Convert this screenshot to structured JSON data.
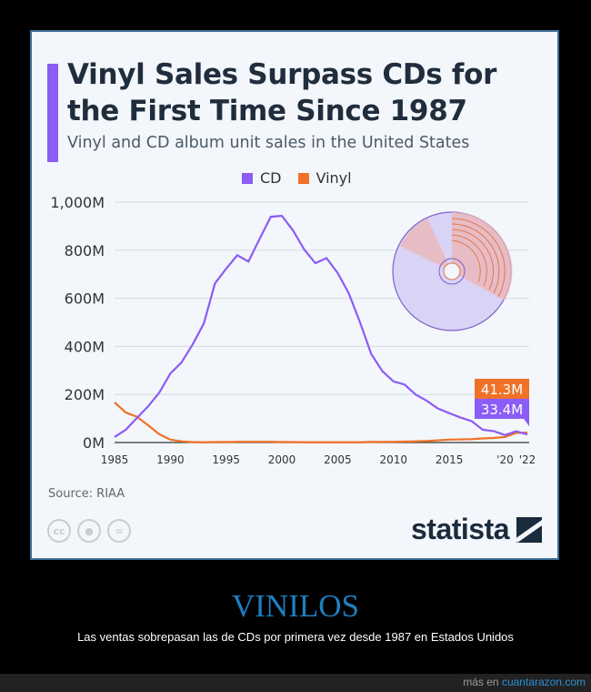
{
  "header": {
    "title": "Vinyl Sales Surpass CDs for the First Time Since 1987",
    "subtitle": "Vinyl and CD album unit sales in the United States"
  },
  "colors": {
    "cd": "#8b5cf6",
    "vinyl": "#f07228",
    "accent": "#8b5cf6"
  },
  "chart_data": {
    "type": "line",
    "title": "Vinyl Sales Surpass CDs for the First Time Since 1987",
    "xlabel": "",
    "ylabel": "",
    "ylim": [
      0,
      1000
    ],
    "xlim": [
      1985,
      2022
    ],
    "grid": true,
    "legend_position": "top",
    "y_ticks": [
      "0M",
      "200M",
      "400M",
      "600M",
      "800M",
      "1,000M"
    ],
    "y_tick_values": [
      0,
      200,
      400,
      600,
      800,
      1000
    ],
    "x_ticks": [
      "1985",
      "1990",
      "1995",
      "2000",
      "2005",
      "2010",
      "2015",
      "'20",
      "'22"
    ],
    "x_tick_values": [
      1985,
      1990,
      1995,
      2000,
      2005,
      2010,
      2015,
      2020,
      2022
    ],
    "x": [
      1985,
      1986,
      1987,
      1988,
      1989,
      1990,
      1991,
      1992,
      1993,
      1994,
      1995,
      1996,
      1997,
      1998,
      1999,
      2000,
      2001,
      2002,
      2003,
      2004,
      2005,
      2006,
      2007,
      2008,
      2009,
      2010,
      2011,
      2012,
      2013,
      2014,
      2015,
      2016,
      2017,
      2018,
      2019,
      2020,
      2021,
      2022
    ],
    "series": [
      {
        "name": "CD",
        "values": [
          23,
          53,
          102,
          150,
          207,
          287,
          333,
          408,
          495,
          662,
          723,
          779,
          753,
          847,
          939,
          943,
          882,
          803,
          746,
          767,
          705,
          620,
          500,
          369,
          297,
          254,
          241,
          199,
          173,
          141,
          122,
          104,
          89,
          53,
          47,
          31,
          47,
          33.4
        ]
      },
      {
        "name": "Vinyl",
        "values": [
          167,
          125,
          107,
          72,
          35,
          12,
          5,
          2,
          1,
          2,
          2,
          3,
          3,
          3,
          3,
          2,
          2,
          1,
          1,
          1,
          1,
          1,
          1,
          2.9,
          2.5,
          2.8,
          3.9,
          4.6,
          6.1,
          9.2,
          12,
          13,
          14,
          17,
          19,
          23,
          40,
          41.3
        ]
      }
    ],
    "annotations": [
      {
        "label": "41.3M",
        "series": "Vinyl"
      },
      {
        "label": "33.4M",
        "series": "CD"
      }
    ]
  },
  "source": "Source: RIAA",
  "brand": "statista",
  "caption": {
    "title": "VINILOS",
    "text": "Las ventas sobrepasan las de CDs por primera vez desde 1987 en Estados Unidos"
  },
  "footer": {
    "prefix": "más en",
    "site": "cuantarazon.com"
  }
}
